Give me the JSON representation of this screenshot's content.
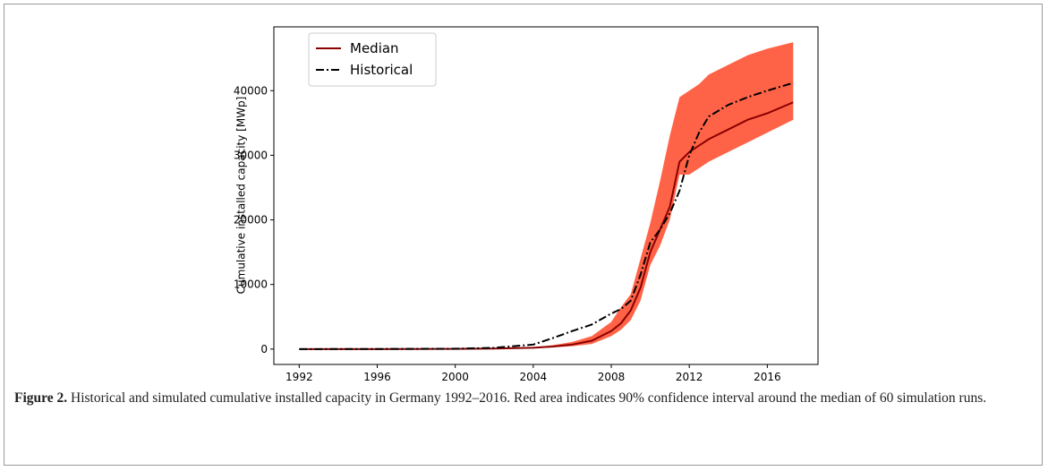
{
  "chart_data": {
    "type": "line",
    "y_label": "Cumulative installed capacity [MWp]",
    "x": [
      1992,
      1996,
      2000,
      2002,
      2004,
      2005,
      2006,
      2007,
      2008,
      2008.5,
      2009,
      2009.5,
      2010,
      2010.5,
      2011,
      2011.5,
      2012,
      2012.5,
      2013,
      2014,
      2015,
      2016,
      2017.33
    ],
    "series": [
      {
        "name": "Median",
        "color": "#8b0000",
        "dash": "solid",
        "values": [
          0,
          0,
          30,
          80,
          200,
          400,
          700,
          1300,
          2800,
          4000,
          6000,
          9500,
          15000,
          18500,
          22000,
          29000,
          30500,
          31500,
          32500,
          34000,
          35500,
          36500,
          38200
        ]
      },
      {
        "name": "Historical",
        "color": "#000000",
        "dash": "dashdot",
        "values": [
          0,
          20,
          60,
          200,
          700,
          1700,
          2800,
          3800,
          5500,
          6200,
          7500,
          11500,
          16500,
          18500,
          21000,
          24500,
          30000,
          33500,
          36000,
          37800,
          39000,
          40000,
          41200
        ]
      }
    ],
    "band": {
      "color": "#ff6347",
      "lower": [
        0,
        0,
        20,
        50,
        120,
        250,
        450,
        800,
        2000,
        3000,
        4500,
        7500,
        13000,
        16000,
        20000,
        27000,
        27000,
        28000,
        29000,
        30500,
        32000,
        33500,
        35500
      ],
      "upper": [
        0,
        10,
        50,
        120,
        300,
        600,
        1100,
        2000,
        4200,
        6500,
        8500,
        14000,
        19500,
        26000,
        33000,
        39000,
        40000,
        41000,
        42500,
        44000,
        45500,
        46500,
        47500
      ]
    },
    "xlim": [
      1990.7,
      2018.6
    ],
    "ylim": [
      -2375,
      49875
    ],
    "xticks": [
      1992,
      1996,
      2000,
      2004,
      2008,
      2012,
      2016
    ],
    "yticks": [
      0,
      10000,
      20000,
      30000,
      40000
    ],
    "legend": "upper left"
  },
  "caption": {
    "label": "Figure 2.",
    "text": "Historical and simulated cumulative installed capacity in Germany 1992–2016. Red area indicates 90% confidence interval around the median of 60 simulation runs."
  }
}
